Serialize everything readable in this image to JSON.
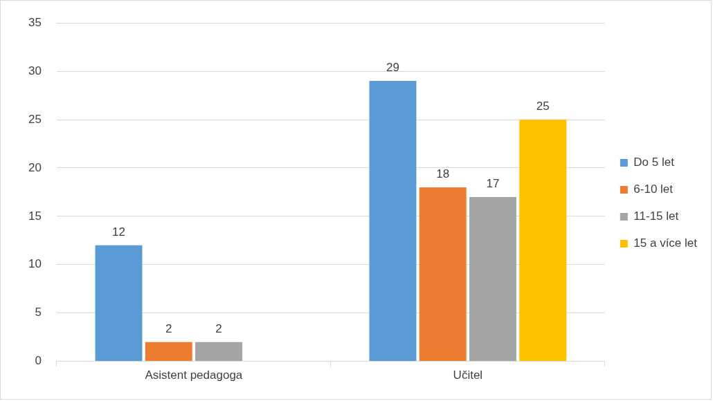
{
  "chart_data": {
    "type": "bar",
    "categories": [
      "Asistent pedagoga",
      "Učitel"
    ],
    "series": [
      {
        "name": "Do 5 let",
        "color": "#5b9bd5",
        "values": [
          12,
          29
        ]
      },
      {
        "name": "6-10 let",
        "color": "#ed7d31",
        "values": [
          2,
          18
        ]
      },
      {
        "name": "11-15 let",
        "color": "#a5a5a5",
        "values": [
          2,
          17
        ]
      },
      {
        "name": "15 a více let",
        "color": "#ffc000",
        "values": [
          null,
          25
        ]
      }
    ],
    "ylim": [
      0,
      35
    ],
    "yticks": [
      0,
      5,
      10,
      15,
      20,
      25,
      30,
      35
    ],
    "grid": "y",
    "legend": "right",
    "data_labels": true
  }
}
